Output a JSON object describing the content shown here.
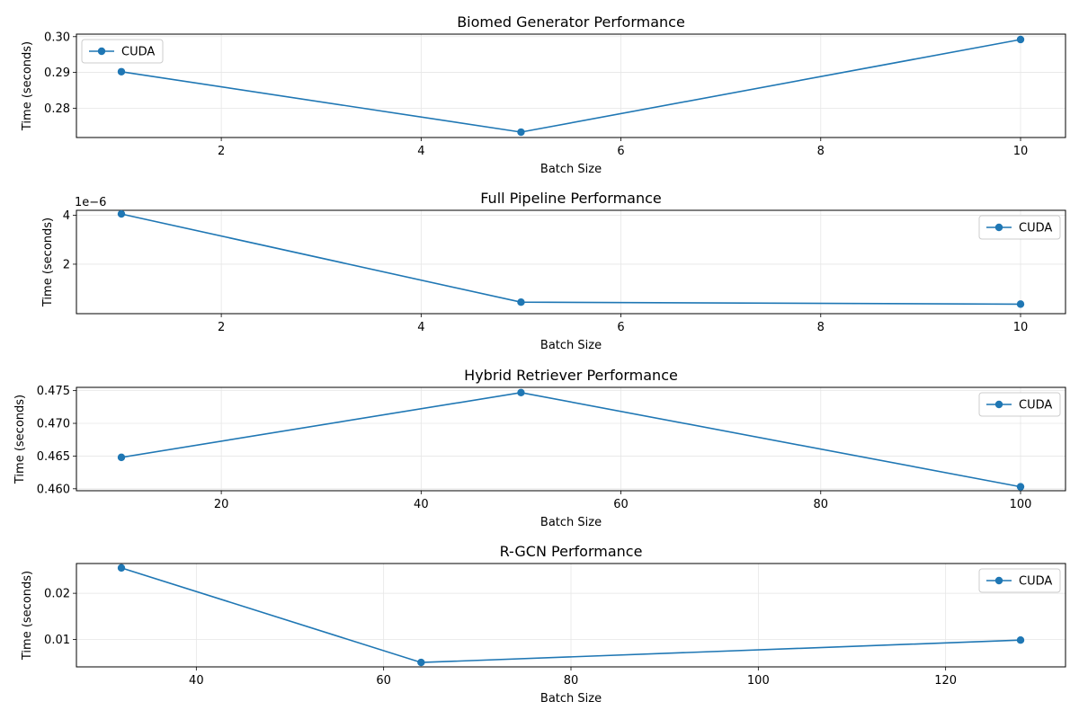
{
  "figure": {
    "background": "#ffffff",
    "line_color": "#1f77b4",
    "grid_color": "#e6e6e6"
  },
  "chart_data": [
    {
      "type": "line",
      "title": "Biomed Generator Performance",
      "xlabel": "Batch Size",
      "ylabel": "Time (seconds)",
      "xlim": [
        0.55,
        10.45
      ],
      "ylim": [
        0.2718,
        0.3007
      ],
      "xticks": [
        2,
        4,
        6,
        8,
        10
      ],
      "yticks": [
        0.28,
        0.29,
        0.3
      ],
      "ytick_labels": [
        "0.28",
        "0.29",
        "0.30"
      ],
      "offset_text": "",
      "legend": "upper-left",
      "grid": true,
      "series": [
        {
          "name": "CUDA",
          "x": [
            1,
            5,
            10
          ],
          "y": [
            0.2902,
            0.2733,
            0.2992
          ]
        }
      ]
    },
    {
      "type": "line",
      "title": "Full Pipeline Performance",
      "xlabel": "Batch Size",
      "ylabel": "Time (seconds)",
      "xlim": [
        0.55,
        10.45
      ],
      "ylim": [
        -2e-08,
        4.2e-06
      ],
      "xticks": [
        2,
        4,
        6,
        8,
        10
      ],
      "yticks": [
        2e-06,
        4e-06
      ],
      "ytick_labels": [
        "2",
        "4"
      ],
      "offset_text": "1e−6",
      "legend": "upper-right",
      "grid": true,
      "series": [
        {
          "name": "CUDA",
          "x": [
            1,
            5,
            10
          ],
          "y": [
            4.05e-06,
            4.5e-07,
            3.7e-07
          ]
        }
      ]
    },
    {
      "type": "line",
      "title": "Hybrid Retriever Performance",
      "xlabel": "Batch Size",
      "ylabel": "Time (seconds)",
      "xlim": [
        5.5,
        104.5
      ],
      "ylim": [
        0.4597,
        0.4755
      ],
      "xticks": [
        20,
        40,
        60,
        80,
        100
      ],
      "yticks": [
        0.46,
        0.465,
        0.47,
        0.475
      ],
      "ytick_labels": [
        "0.460",
        "0.465",
        "0.470",
        "0.475"
      ],
      "offset_text": "",
      "legend": "upper-right",
      "grid": true,
      "series": [
        {
          "name": "CUDA",
          "x": [
            10,
            50,
            100
          ],
          "y": [
            0.4648,
            0.4747,
            0.4603
          ]
        }
      ]
    },
    {
      "type": "line",
      "title": "R-GCN Performance",
      "xlabel": "Batch Size",
      "ylabel": "Time (seconds)",
      "xlim": [
        27.2,
        132.8
      ],
      "ylim": [
        0.00406,
        0.02645
      ],
      "xticks": [
        40,
        60,
        80,
        100,
        120
      ],
      "yticks": [
        0.01,
        0.02
      ],
      "ytick_labels": [
        "0.01",
        "0.02"
      ],
      "offset_text": "",
      "legend": "upper-right",
      "grid": true,
      "series": [
        {
          "name": "CUDA",
          "x": [
            32,
            64,
            128
          ],
          "y": [
            0.0255,
            0.00502,
            0.00986
          ]
        }
      ]
    }
  ]
}
